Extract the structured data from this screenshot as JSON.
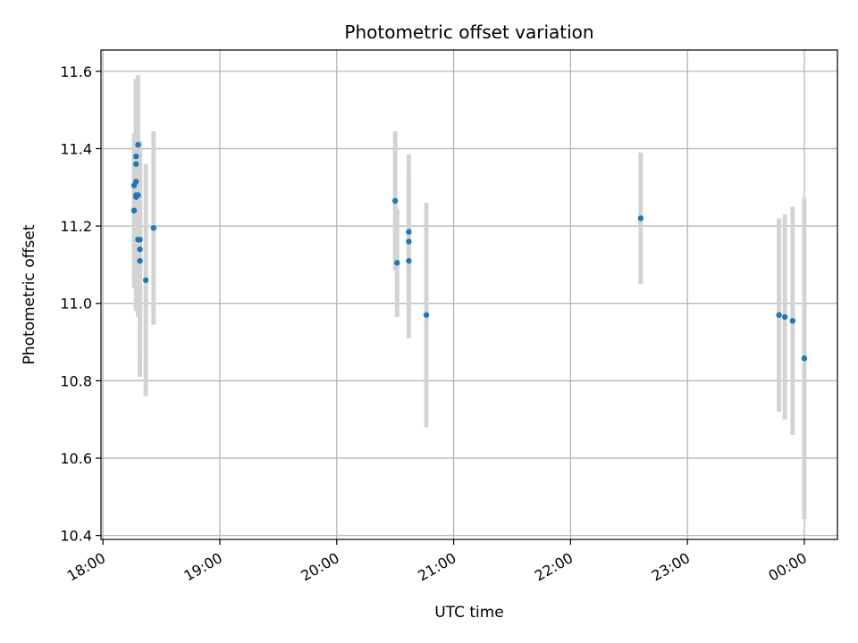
{
  "chart_data": {
    "type": "scatter",
    "title": "Photometric offset variation",
    "xlabel": "UTC time",
    "ylabel": "Photometric offset",
    "x_unit": "UTC time (HH:MM, continuing past midnight)",
    "xlim": [
      "17:59",
      "00:17"
    ],
    "ylim": [
      10.39,
      11.655
    ],
    "x_ticks": [
      "18:00",
      "19:00",
      "20:00",
      "21:00",
      "22:00",
      "23:00",
      "00:00"
    ],
    "y_ticks": [
      10.4,
      10.6,
      10.8,
      11.0,
      11.2,
      11.4,
      11.6
    ],
    "y_tick_labels": [
      "10.4",
      "10.6",
      "10.8",
      "11.0",
      "11.2",
      "11.4",
      "11.6"
    ],
    "grid": true,
    "point_color": "#1f77b4",
    "errorbar_color": "#d3d3d3",
    "points": [
      {
        "x": "18:16",
        "y": 11.305,
        "err": 0.12
      },
      {
        "x": "18:16",
        "y": 11.24,
        "err": 0.2
      },
      {
        "x": "18:16",
        "y": 11.24,
        "err": 0.16
      },
      {
        "x": "18:17",
        "y": 11.275,
        "err": 0.22
      },
      {
        "x": "18:17",
        "y": 11.315,
        "err": 0.18
      },
      {
        "x": "18:17",
        "y": 11.36,
        "err": 0.14
      },
      {
        "x": "18:17",
        "y": 11.38,
        "err": 0.2
      },
      {
        "x": "18:17",
        "y": 11.28,
        "err": 0.3
      },
      {
        "x": "18:18",
        "y": 11.41,
        "err": 0.18
      },
      {
        "x": "18:18",
        "y": 11.28,
        "err": 0.3
      },
      {
        "x": "18:18",
        "y": 11.165,
        "err": 0.2
      },
      {
        "x": "18:19",
        "y": 11.165,
        "err": 0.22
      },
      {
        "x": "18:19",
        "y": 11.14,
        "err": 0.28
      },
      {
        "x": "18:19",
        "y": 11.11,
        "err": 0.3
      },
      {
        "x": "18:22",
        "y": 11.06,
        "err": 0.3
      },
      {
        "x": "18:26",
        "y": 11.195,
        "err": 0.25
      },
      {
        "x": "20:30",
        "y": 11.265,
        "err": 0.18
      },
      {
        "x": "20:31",
        "y": 11.105,
        "err": 0.14
      },
      {
        "x": "20:37",
        "y": 11.185,
        "err": 0.2
      },
      {
        "x": "20:37",
        "y": 11.16,
        "err": 0.19
      },
      {
        "x": "20:37",
        "y": 11.11,
        "err": 0.2
      },
      {
        "x": "20:46",
        "y": 10.97,
        "err": 0.29
      },
      {
        "x": "22:36",
        "y": 11.22,
        "err": 0.17
      },
      {
        "x": "23:47",
        "y": 10.97,
        "err": 0.25
      },
      {
        "x": "23:50",
        "y": 10.965,
        "err": 0.265
      },
      {
        "x": "23:54",
        "y": 10.955,
        "err": 0.295
      },
      {
        "x": "24:00",
        "y": 10.858,
        "err": 0.415
      }
    ]
  }
}
